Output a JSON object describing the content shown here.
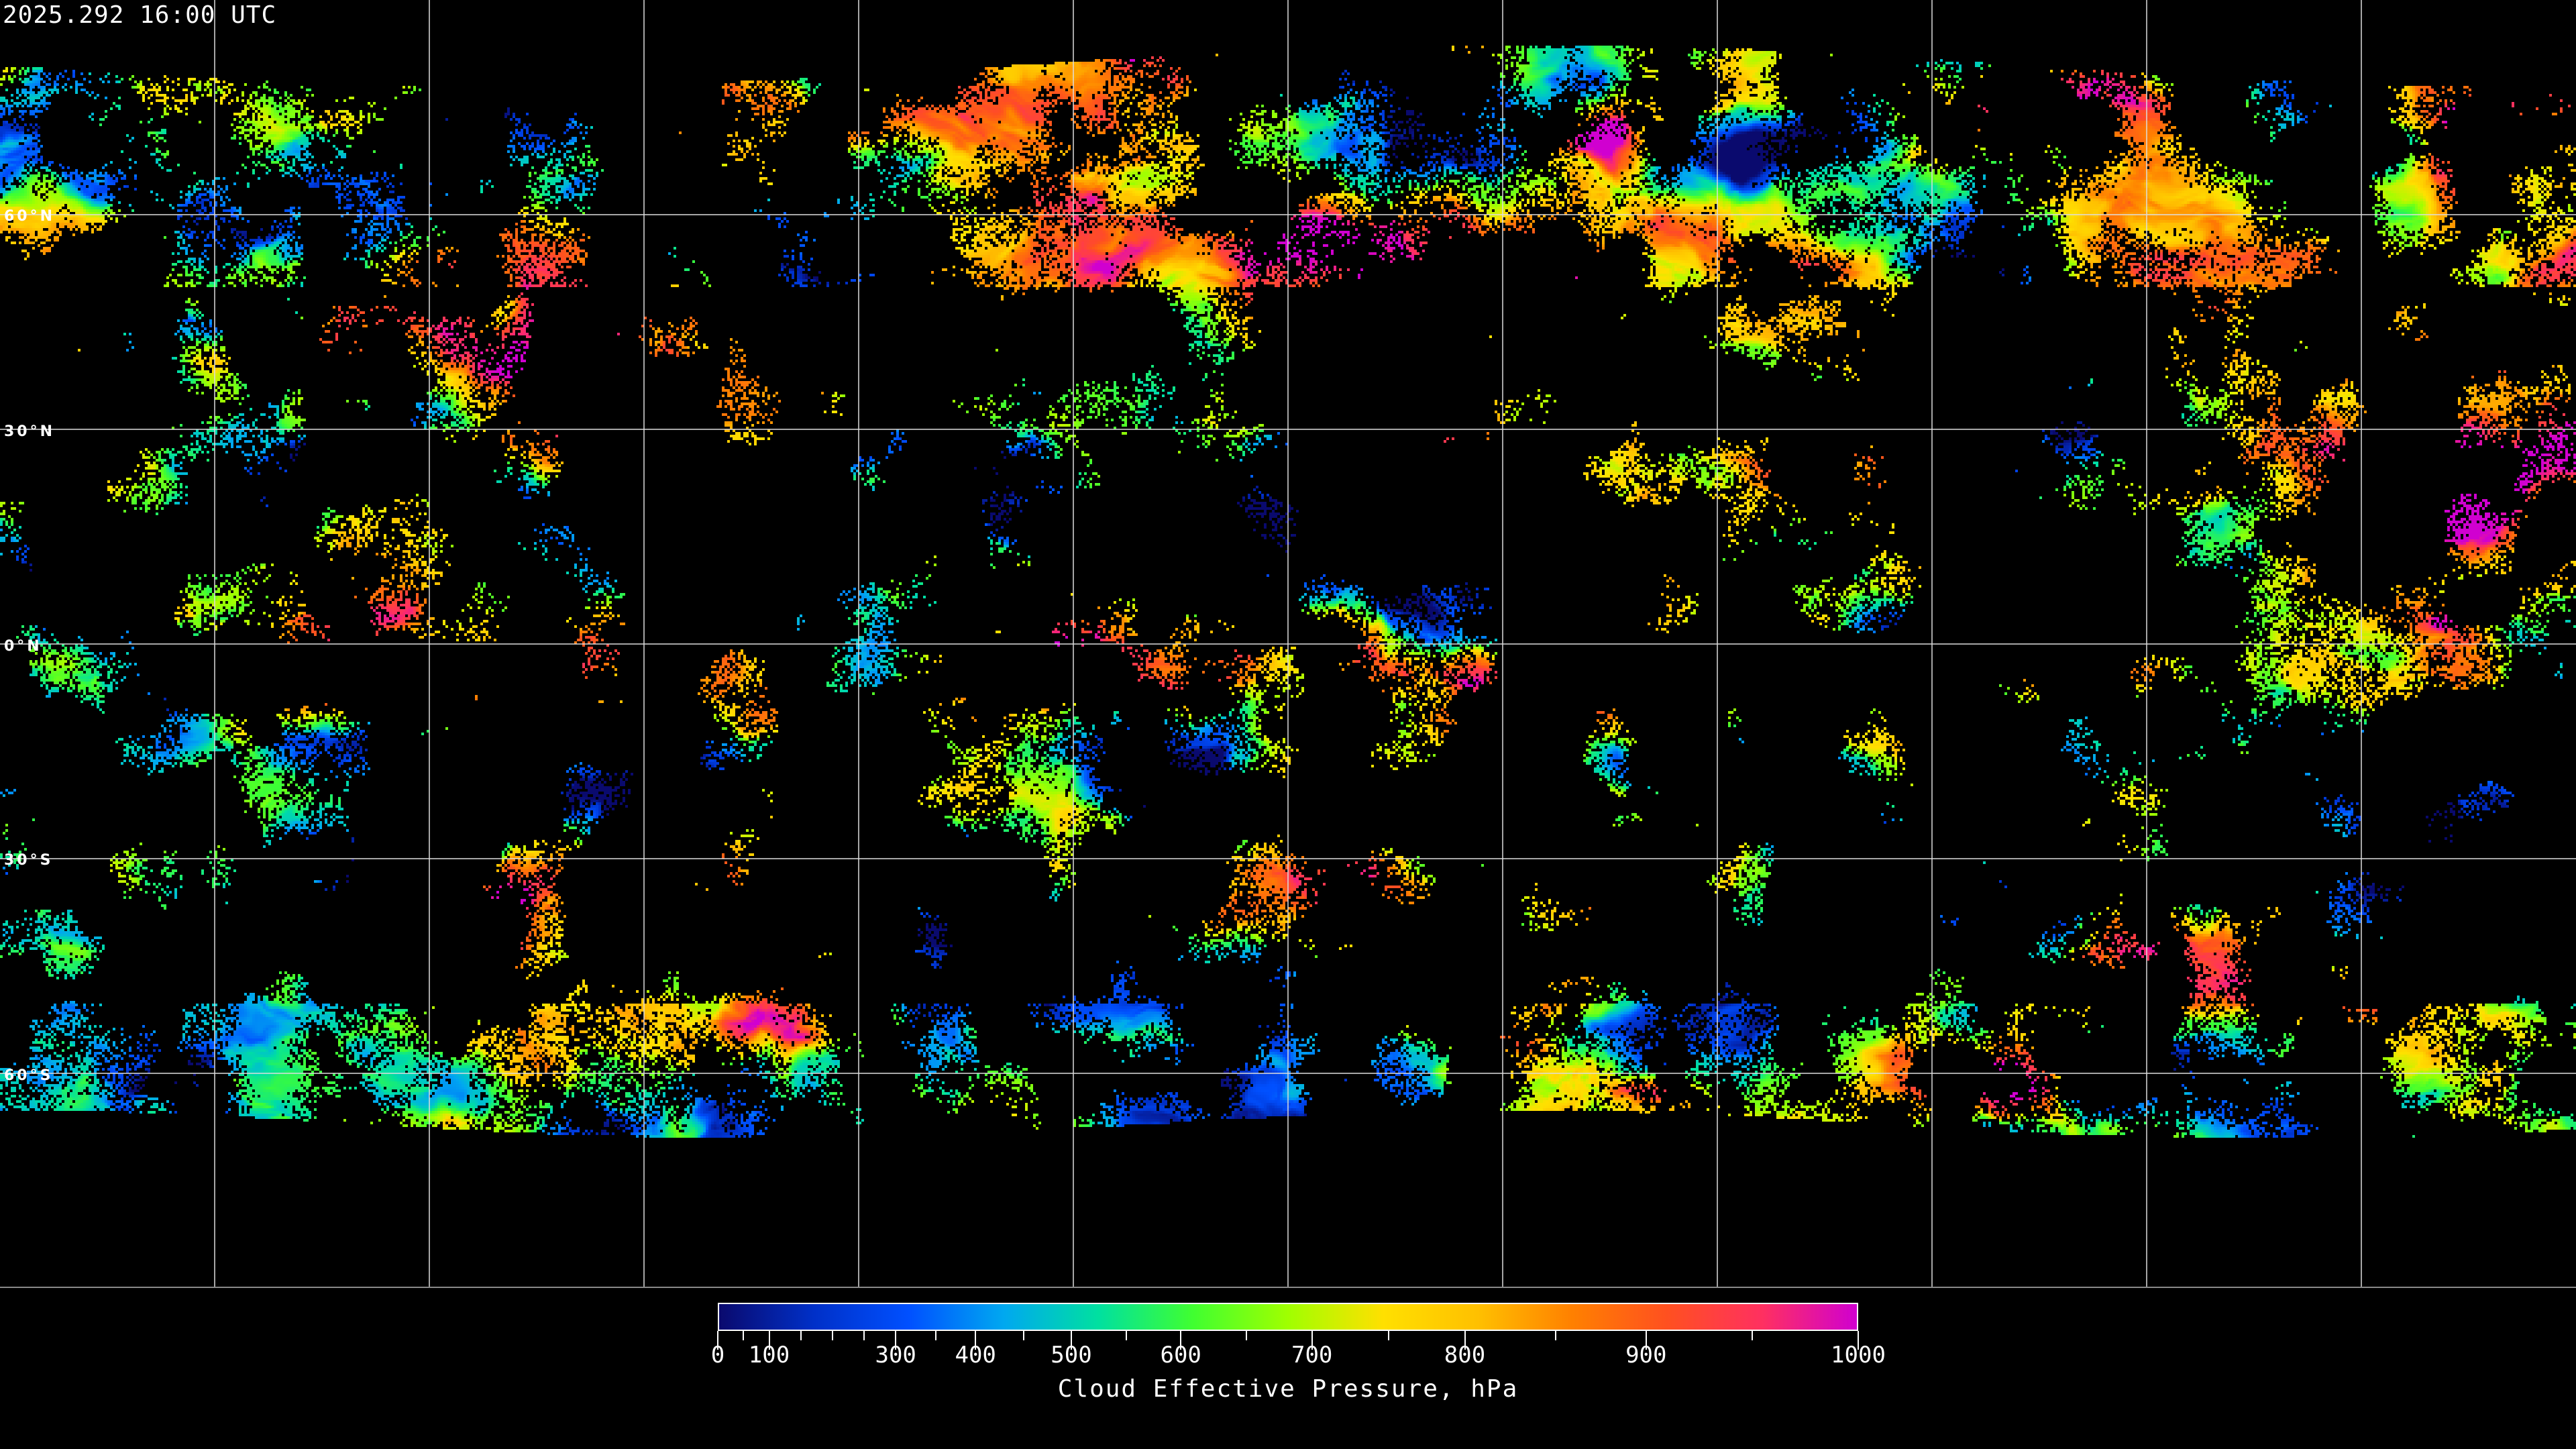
{
  "header": {
    "timestamp": "2025.292 16:00 UTC"
  },
  "map": {
    "projection": "equirectangular",
    "latitude_labels": [
      "60°N",
      "30°N",
      "0°N",
      "30°S",
      "60°S"
    ],
    "latitude_values": [
      60,
      30,
      0,
      -30,
      -60
    ],
    "longitude_gridlines_deg": [
      -150,
      -120,
      -90,
      -60,
      -30,
      0,
      30,
      60,
      90,
      120,
      150
    ],
    "grid_color": "#ffffff",
    "no_data_color": "#000000"
  },
  "colorbar": {
    "title": "Cloud Effective Pressure, hPa",
    "min": 0,
    "max": 1000,
    "tick_labels": [
      "0",
      "100",
      "300",
      "400",
      "500",
      "600",
      "700",
      "800",
      "900",
      "1000"
    ],
    "tick_values": [
      0,
      100,
      300,
      400,
      500,
      600,
      700,
      800,
      900,
      1000
    ],
    "colors": [
      "#0a0a6e",
      "#0030c8",
      "#0050ff",
      "#00a8f0",
      "#00e0a0",
      "#40ff30",
      "#a0ff00",
      "#ffe000",
      "#ffc000",
      "#ff8000",
      "#ff5020",
      "#ff3060",
      "#d000d0"
    ]
  }
}
